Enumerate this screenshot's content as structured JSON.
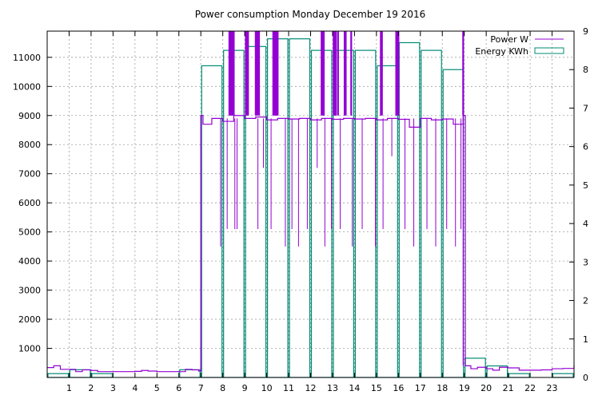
{
  "chart_data": {
    "type": "bar",
    "title": "Power consumption Monday December 19 2016",
    "grid": true,
    "legend_position": "top-right",
    "x_axis": {
      "range": [
        0,
        24
      ],
      "tick_labels": [
        "1",
        "2",
        "3",
        "4",
        "5",
        "6",
        "7",
        "8",
        "9",
        "10",
        "11",
        "12",
        "13",
        "14",
        "15",
        "16",
        "17",
        "18",
        "19",
        "20",
        "21",
        "22",
        "23"
      ]
    },
    "y_axis_left": {
      "range": [
        0,
        11900
      ],
      "tick_labels": [
        "1000",
        "2000",
        "3000",
        "4000",
        "5000",
        "6000",
        "7000",
        "8000",
        "9000",
        "10000",
        "11000"
      ]
    },
    "y_axis_right": {
      "range": [
        0,
        9
      ],
      "tick_labels": [
        "0",
        "1",
        "2",
        "3",
        "4",
        "5",
        "6",
        "7",
        "8",
        "9"
      ]
    },
    "series": [
      {
        "name": "Power W",
        "axis": "left",
        "style": "line",
        "color": "#9400d3",
        "hours": [
          0,
          0.3,
          0.6,
          1,
          1.3,
          1.6,
          2,
          2.3,
          2.6,
          3,
          3.5,
          4,
          4.3,
          4.6,
          5,
          5.5,
          6,
          6.3,
          6.6,
          6.9,
          7.0,
          7.1,
          7.5,
          8.0,
          8.5,
          9.0,
          9.5,
          10.0,
          10.5,
          11.0,
          11.5,
          12.0,
          12.5,
          13.0,
          13.5,
          14.0,
          14.5,
          15.0,
          15.5,
          16.0,
          16.5,
          17.0,
          17.5,
          18.0,
          18.5,
          18.95,
          19.05,
          19.3,
          19.6,
          20,
          20.3,
          20.6,
          21,
          21.5,
          22,
          22.5,
          23,
          23.5,
          24
        ],
        "values": [
          340,
          400,
          280,
          280,
          200,
          260,
          240,
          200,
          200,
          200,
          200,
          210,
          240,
          220,
          200,
          200,
          200,
          280,
          260,
          220,
          9000,
          8700,
          8900,
          8800,
          9000,
          8900,
          8950,
          8850,
          8900,
          8880,
          8900,
          8850,
          8900,
          8870,
          8900,
          8880,
          8900,
          8850,
          8900,
          8870,
          8600,
          8900,
          8850,
          8880,
          8700,
          9000,
          400,
          300,
          350,
          300,
          250,
          350,
          330,
          250,
          250,
          260,
          300,
          310,
          420
        ]
      },
      {
        "name": "Energy KWh",
        "axis": "right",
        "style": "boxes",
        "color": "#008b74",
        "hours": [
          0,
          1,
          2,
          3,
          4,
          5,
          6,
          7,
          8,
          9,
          10,
          11,
          12,
          13,
          14,
          15,
          16,
          17,
          18,
          19,
          20,
          21,
          22,
          23
        ],
        "values": [
          0.1,
          0.2,
          0.1,
          0.0,
          0.0,
          0.0,
          0.2,
          8.1,
          8.5,
          8.6,
          8.8,
          8.8,
          8.5,
          8.5,
          8.5,
          8.1,
          8.7,
          8.5,
          8.0,
          0.5,
          0.3,
          0.1,
          0.0,
          0.1
        ]
      }
    ],
    "power_spikes_hours": [
      8.3,
      8.35,
      8.4,
      8.45,
      8.5,
      9.05,
      9.1,
      9.15,
      9.5,
      9.55,
      9.6,
      9.65,
      10.3,
      10.35,
      10.4,
      10.45,
      10.5,
      12.5,
      12.55,
      12.6,
      13.05,
      13.1,
      13.15,
      13.25,
      13.55,
      13.6,
      13.85,
      15.2,
      15.25,
      15.9,
      15.95,
      16.0,
      18.95
    ],
    "power_dips_hours": [
      7.9,
      8.2,
      8.55,
      8.65,
      9.6,
      9.85,
      10.2,
      10.85,
      11.15,
      11.45,
      11.85,
      12.3,
      12.65,
      12.95,
      13.35,
      13.9,
      14.35,
      14.95,
      15.3,
      15.7,
      16.3,
      16.7,
      17.3,
      17.7,
      18.2,
      18.6,
      18.85
    ]
  }
}
